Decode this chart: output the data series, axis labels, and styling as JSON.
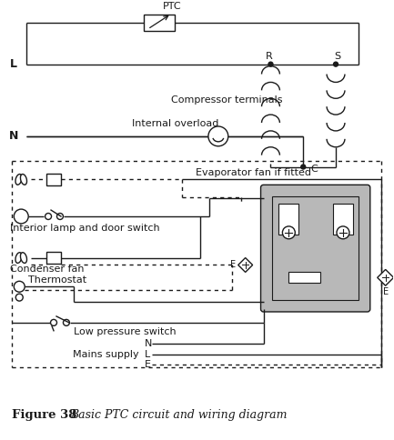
{
  "title": "Figure 38",
  "title_italic": "    Basic PTC circuit and wiring diagram",
  "bg_color": "#ffffff",
  "line_color": "#1a1a1a",
  "gray_fill": "#b8b8b8",
  "labels": {
    "L": "L",
    "N": "N",
    "PTC": "PTC",
    "R": "R",
    "S": "S",
    "C": "C",
    "compressor": "Compressor terminals",
    "internal_overload": "Internal overload",
    "evap_fan": "Evaporator fan if fitted",
    "interior_lamp": "Interior lamp and door switch",
    "condenser_fan": "Condenser fan",
    "thermostat": "Thermostat",
    "low_pressure": "Low pressure switch",
    "mains_supply": "Mains supply",
    "mains_N": "N",
    "mains_L": "L",
    "mains_E": "E",
    "E1": "E",
    "E2": "E"
  }
}
